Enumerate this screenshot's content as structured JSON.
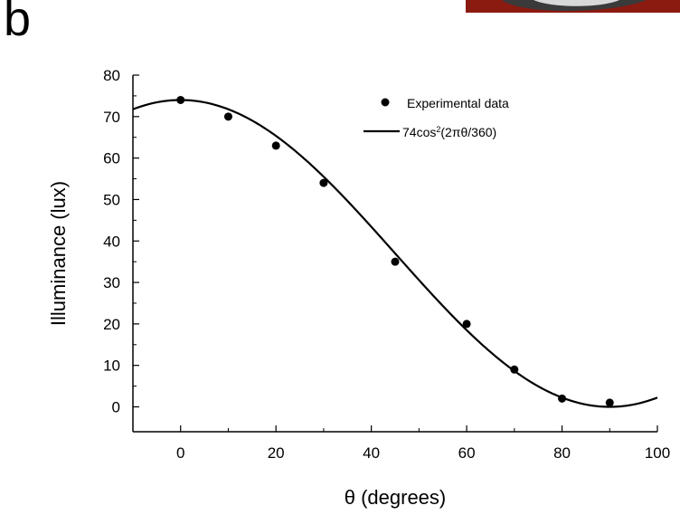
{
  "panel_label": "b",
  "colors": {
    "ink": "#000000",
    "photo_red": "#8b1a10",
    "photo_dark": "#2a2a2a"
  },
  "chart_data": {
    "type": "scatter",
    "title": "",
    "xlabel": "θ (degrees)",
    "ylabel": "Illuminance (lux)",
    "xlim": [
      -10,
      100
    ],
    "ylim": [
      -6,
      80
    ],
    "xticks": [
      0,
      20,
      40,
      60,
      80,
      100
    ],
    "yticks": [
      0,
      10,
      20,
      30,
      40,
      50,
      60,
      70,
      80
    ],
    "grid": false,
    "legend_placement": "top-right",
    "series": [
      {
        "name": "Experimental data",
        "kind": "scatter",
        "x": [
          0,
          10,
          20,
          30,
          45,
          60,
          70,
          80,
          90
        ],
        "y": [
          74,
          70,
          63,
          54,
          35,
          20,
          9,
          2,
          1
        ]
      },
      {
        "name": "74cos²(2πθ/360)",
        "name_parts": {
          "prefix": "74cos",
          "sup": "2",
          "suffix": "(2πθ/360)"
        },
        "kind": "line",
        "amplitude": 74
      }
    ]
  }
}
